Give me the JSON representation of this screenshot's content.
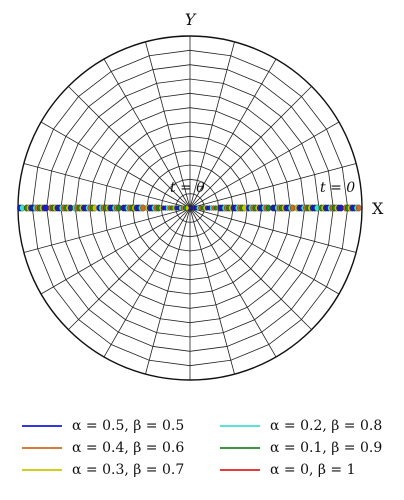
{
  "axes": {
    "x_label": "X",
    "y_label": "Y"
  },
  "time_labels": {
    "center": "t = θ",
    "right": "t = 0"
  },
  "grid": {
    "rings": 12,
    "spokes": 24
  },
  "legend": [
    {
      "label": "α = 0.5, β = 0.5",
      "color": "#1a1adb"
    },
    {
      "label": "α = 0.2, β = 0.8",
      "color": "#40e0d0"
    },
    {
      "label": "α = 0.4, β = 0.6",
      "color": "#d2691e"
    },
    {
      "label": "α = 0.1, β = 0.9",
      "color": "#1e8a1e"
    },
    {
      "label": "α = 0.3, β = 0.7",
      "color": "#c8c800"
    },
    {
      "label": "α = 0, β = 1",
      "color": "#e02020"
    }
  ],
  "marker_colors": [
    "#1a1adb",
    "#40e0d0",
    "#d2691e",
    "#1e8a1e",
    "#c8c800",
    "#2a2a8a"
  ]
}
